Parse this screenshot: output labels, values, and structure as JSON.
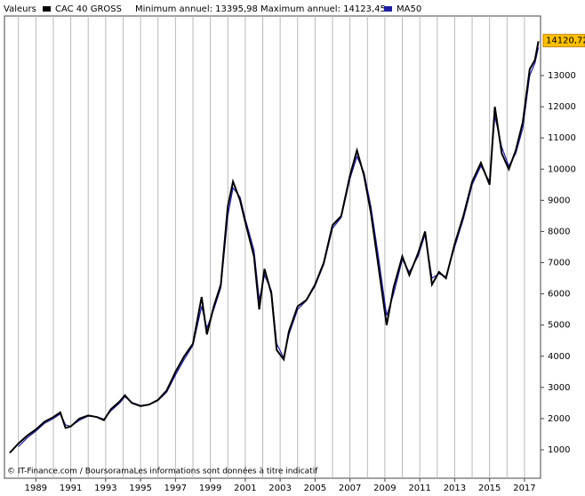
{
  "chart_data": {
    "type": "line",
    "header": "Valeurs",
    "stats": "Minimum annuel: 13395,98 Maximum annuel: 14123,45",
    "footer": "© IT-Finance.com / BoursoramaLes informations sont données à titre indicatif",
    "x": [
      1987.5,
      1988,
      1988.5,
      1989,
      1989.5,
      1990,
      1990.4,
      1990.7,
      1991,
      1991.5,
      1992,
      1992.5,
      1992.9,
      1993.3,
      1993.8,
      1994.1,
      1994.5,
      1995,
      1995.5,
      1996,
      1996.5,
      1997,
      1997.5,
      1998,
      1998.5,
      1998.8,
      1999.2,
      1999.6,
      2000,
      2000.3,
      2000.7,
      2001,
      2001.5,
      2001.8,
      2002.1,
      2002.5,
      2002.8,
      2003.2,
      2003.5,
      2004,
      2004.5,
      2005,
      2005.5,
      2006,
      2006.5,
      2007,
      2007.4,
      2007.8,
      2008.2,
      2008.6,
      2009.1,
      2009.5,
      2010,
      2010.4,
      2010.9,
      2011.3,
      2011.7,
      2012.1,
      2012.5,
      2013,
      2013.5,
      2014,
      2014.5,
      2015,
      2015.3,
      2015.7,
      2016.1,
      2016.5,
      2016.9,
      2017.3,
      2017.6,
      2017.8
    ],
    "series": [
      {
        "name": "CAC 40 GROSS",
        "color": "#000000",
        "values": [
          900,
          1200,
          1450,
          1650,
          1900,
          2050,
          2200,
          1700,
          1750,
          2000,
          2100,
          2050,
          1950,
          2300,
          2550,
          2750,
          2500,
          2400,
          2450,
          2600,
          2900,
          3500,
          4000,
          4400,
          5900,
          4700,
          5600,
          6300,
          8800,
          9600,
          9000,
          8300,
          7200,
          5500,
          6800,
          6000,
          4200,
          3900,
          4800,
          5600,
          5800,
          6300,
          7000,
          8200,
          8500,
          9800,
          10600,
          9800,
          8600,
          7000,
          5000,
          6200,
          7200,
          6600,
          7300,
          8000,
          6300,
          6700,
          6500,
          7600,
          8500,
          9600,
          10200,
          9500,
          12000,
          10500,
          10000,
          10600,
          11500,
          13200,
          13500,
          14100
        ]
      },
      {
        "name": "MA50",
        "color": "#1f1fa0",
        "values": [
          null,
          1100,
          1380,
          1600,
          1850,
          2000,
          2150,
          1800,
          1750,
          1950,
          2080,
          2060,
          1980,
          2250,
          2500,
          2700,
          2520,
          2420,
          2450,
          2580,
          2850,
          3400,
          3900,
          4350,
          5600,
          4900,
          5500,
          6200,
          8500,
          9400,
          9100,
          8400,
          7400,
          5800,
          6600,
          6100,
          4400,
          3950,
          4700,
          5500,
          5780,
          6250,
          6950,
          8100,
          8450,
          9700,
          10400,
          9900,
          8800,
          7300,
          5300,
          6000,
          7100,
          6700,
          7200,
          7900,
          6500,
          6650,
          6550,
          7500,
          8400,
          9500,
          10100,
          9600,
          11700,
          10700,
          10100,
          10500,
          11300,
          13000,
          13400,
          13900
        ]
      }
    ],
    "xlim": [
      1987.2,
      2017.92
    ],
    "xticks": [
      1989,
      1991,
      1993,
      1995,
      1997,
      1999,
      2001,
      2003,
      2005,
      2007,
      2009,
      2011,
      2013,
      2015,
      2017
    ],
    "xminor": [
      1988,
      1990,
      1992,
      1994,
      1996,
      1998,
      2000,
      2002,
      2004,
      2006,
      2008,
      2010,
      2012,
      2014,
      2016
    ],
    "ylim": [
      88,
      14910
    ],
    "yticks": [
      1000,
      2000,
      3000,
      4000,
      5000,
      6000,
      7000,
      8000,
      9000,
      10000,
      11000,
      12000,
      13000
    ],
    "last_value": {
      "value": 14120.72,
      "label": "14120,72"
    },
    "grid": true
  }
}
